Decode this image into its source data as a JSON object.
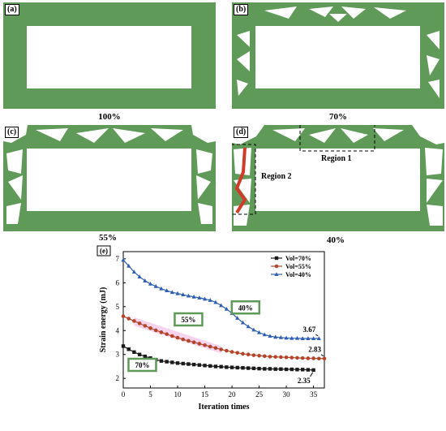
{
  "panels": [
    {
      "label": "(a)",
      "caption": "100%"
    },
    {
      "label": "(b)",
      "caption": "70%"
    },
    {
      "label": "(c)",
      "caption": "55%"
    },
    {
      "label": "(d)",
      "caption": "40%",
      "regions": [
        "Region 1",
        "Region 2"
      ]
    }
  ],
  "colors": {
    "structure": "#5f9a58",
    "region_box": "#000000",
    "load_path": "#d23a2a",
    "highlight": "#f2c2e6"
  },
  "chart_data": {
    "type": "line",
    "panel_label": "(e)",
    "xlabel": "Iteration times",
    "ylabel": "Strain energy (mJ)",
    "xlim": [
      0,
      37
    ],
    "ylim": [
      1.6,
      7.3
    ],
    "xticks": [
      0,
      5,
      10,
      15,
      20,
      25,
      30,
      35
    ],
    "yticks": [
      2,
      3,
      4,
      5,
      6,
      7
    ],
    "legend_position": "top-right",
    "series": [
      {
        "name": "Vol=70%",
        "color": "#1a1a1a",
        "marker": "square",
        "x": [
          0,
          1,
          2,
          3,
          4,
          5,
          6,
          7,
          8,
          9,
          10,
          11,
          12,
          13,
          14,
          15,
          16,
          17,
          18,
          19,
          20,
          21,
          22,
          23,
          24,
          25,
          26,
          27,
          28,
          29,
          30,
          31,
          32,
          33,
          34,
          35
        ],
        "values": [
          3.35,
          3.22,
          3.1,
          3.0,
          2.92,
          2.85,
          2.78,
          2.73,
          2.7,
          2.67,
          2.64,
          2.62,
          2.6,
          2.58,
          2.56,
          2.54,
          2.52,
          2.5,
          2.49,
          2.47,
          2.46,
          2.45,
          2.44,
          2.43,
          2.42,
          2.41,
          2.4,
          2.4,
          2.39,
          2.39,
          2.38,
          2.38,
          2.37,
          2.37,
          2.36,
          2.35
        ]
      },
      {
        "name": "Vol=55%",
        "color": "#b5452a",
        "marker": "circle",
        "x": [
          0,
          1,
          2,
          3,
          4,
          5,
          6,
          7,
          8,
          9,
          10,
          11,
          12,
          13,
          14,
          15,
          16,
          17,
          18,
          19,
          20,
          21,
          22,
          23,
          24,
          25,
          26,
          27,
          28,
          29,
          30,
          31,
          32,
          33,
          34,
          35,
          36,
          37
        ],
        "values": [
          4.6,
          4.5,
          4.4,
          4.3,
          4.2,
          4.1,
          4.01,
          3.93,
          3.85,
          3.77,
          3.7,
          3.63,
          3.57,
          3.51,
          3.45,
          3.39,
          3.33,
          3.27,
          3.21,
          3.16,
          3.11,
          3.07,
          3.03,
          3.0,
          2.97,
          2.95,
          2.93,
          2.91,
          2.9,
          2.89,
          2.88,
          2.87,
          2.86,
          2.85,
          2.84,
          2.84,
          2.83,
          2.83
        ]
      },
      {
        "name": "Vol=40%",
        "color": "#2e5fb3",
        "marker": "triangle",
        "x": [
          0,
          1,
          2,
          3,
          4,
          5,
          6,
          7,
          8,
          9,
          10,
          11,
          12,
          13,
          14,
          15,
          16,
          17,
          18,
          19,
          20,
          21,
          22,
          23,
          24,
          25,
          26,
          27,
          28,
          29,
          30,
          31,
          32,
          33,
          34,
          35,
          36
        ],
        "values": [
          6.95,
          6.7,
          6.45,
          6.25,
          6.08,
          5.95,
          5.85,
          5.75,
          5.67,
          5.6,
          5.55,
          5.5,
          5.45,
          5.41,
          5.37,
          5.32,
          5.27,
          5.18,
          5.05,
          4.9,
          4.72,
          4.52,
          4.33,
          4.17,
          4.03,
          3.92,
          3.83,
          3.77,
          3.73,
          3.71,
          3.69,
          3.68,
          3.68,
          3.67,
          3.67,
          3.67,
          3.67
        ]
      }
    ],
    "annotations": [
      {
        "text": "3.67",
        "x": 36,
        "y": 3.67
      },
      {
        "text": "2.83",
        "x": 37,
        "y": 2.83
      },
      {
        "text": "2.35",
        "x": 35,
        "y": 2.35
      }
    ],
    "series_labels": [
      {
        "text": "70%",
        "x": 3.5,
        "y": 2.55
      },
      {
        "text": "55%",
        "x": 12,
        "y": 4.45
      },
      {
        "text": "40%",
        "x": 22.5,
        "y": 4.95
      }
    ]
  }
}
